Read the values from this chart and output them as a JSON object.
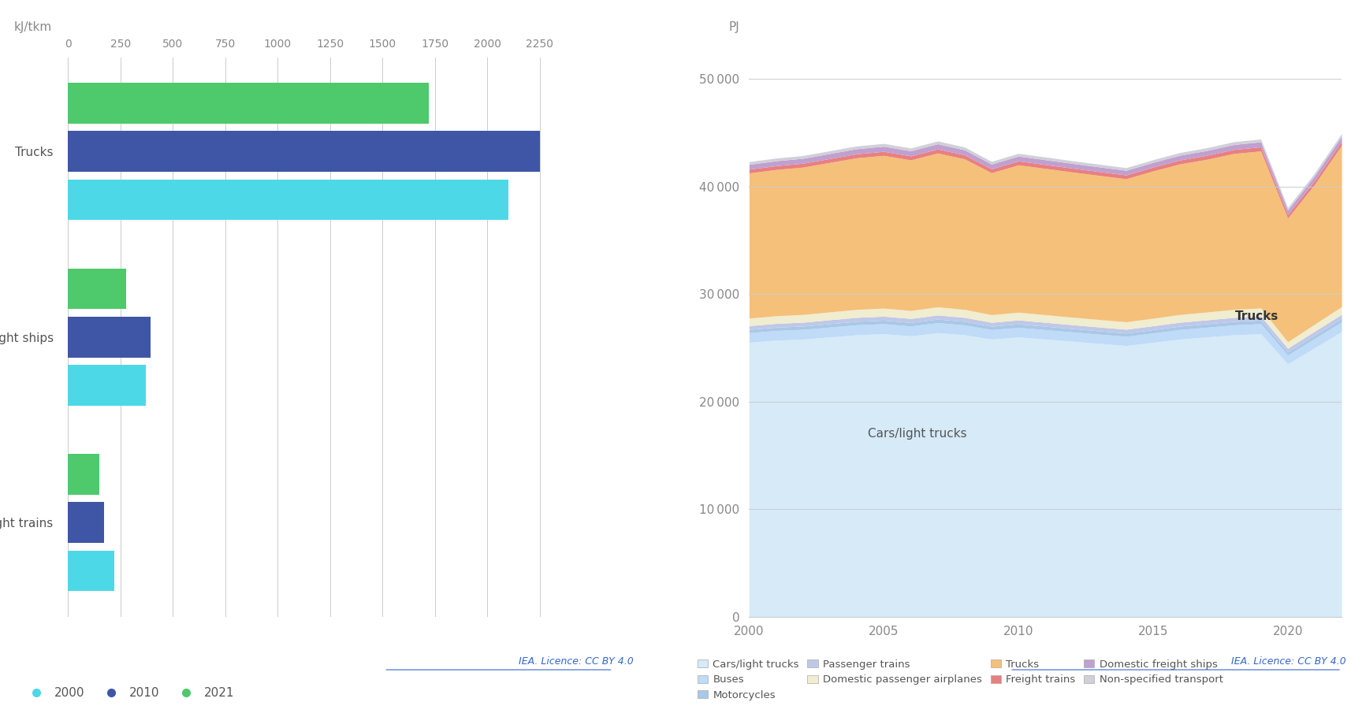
{
  "bar": {
    "categories": [
      "Freight trains",
      "Domestic freight ships",
      "Trucks"
    ],
    "years": [
      "2000",
      "2010",
      "2021"
    ],
    "colors": [
      "#4DD8E8",
      "#3F55A5",
      "#4EC96B"
    ],
    "values": {
      "Freight trains": [
        220,
        170,
        150
      ],
      "Domestic freight ships": [
        370,
        395,
        275
      ],
      "Trucks": [
        2100,
        2250,
        1720
      ]
    },
    "xlabel": "kJ/tkm",
    "xticks": [
      0,
      250,
      500,
      750,
      1000,
      1250,
      1500,
      1750,
      2000,
      2250
    ],
    "xlim": [
      0,
      2600
    ],
    "bar_height": 0.22,
    "bar_gap": 0.04
  },
  "area": {
    "xlabel": "PJ",
    "years": [
      2000,
      2001,
      2002,
      2003,
      2004,
      2005,
      2006,
      2007,
      2008,
      2009,
      2010,
      2011,
      2012,
      2013,
      2014,
      2015,
      2016,
      2017,
      2018,
      2019,
      2020,
      2021,
      2022
    ],
    "cars_light_trucks": [
      25500,
      25700,
      25800,
      26000,
      26200,
      26300,
      26100,
      26400,
      26200,
      25800,
      26000,
      25800,
      25600,
      25400,
      25200,
      25500,
      25800,
      26000,
      26200,
      26300,
      23500,
      25000,
      26500
    ],
    "buses": [
      900,
      900,
      900,
      920,
      930,
      930,
      920,
      930,
      920,
      880,
      890,
      880,
      870,
      860,
      860,
      870,
      890,
      900,
      920,
      930,
      820,
      860,
      900
    ],
    "motorcycles": [
      300,
      305,
      310,
      315,
      320,
      325,
      325,
      330,
      325,
      315,
      320,
      315,
      310,
      308,
      305,
      310,
      315,
      320,
      325,
      330,
      290,
      310,
      325
    ],
    "passenger_trains": [
      350,
      355,
      360,
      365,
      370,
      375,
      375,
      380,
      375,
      365,
      370,
      365,
      360,
      358,
      355,
      360,
      365,
      370,
      375,
      380,
      340,
      360,
      375
    ],
    "domestic_passenger_airplanes": [
      700,
      710,
      720,
      730,
      740,
      750,
      740,
      760,
      740,
      710,
      720,
      710,
      700,
      695,
      690,
      700,
      720,
      730,
      740,
      755,
      600,
      660,
      720
    ],
    "trucks": [
      13500,
      13600,
      13700,
      13900,
      14100,
      14200,
      14000,
      14300,
      14000,
      13200,
      13700,
      13600,
      13500,
      13400,
      13300,
      13700,
      14000,
      14200,
      14500,
      14600,
      11500,
      13000,
      15000
    ],
    "freight_trains": [
      350,
      355,
      360,
      365,
      370,
      375,
      375,
      380,
      375,
      365,
      370,
      365,
      360,
      358,
      355,
      360,
      365,
      370,
      375,
      380,
      340,
      360,
      375
    ],
    "domestic_freight_ships": [
      450,
      455,
      460,
      465,
      470,
      475,
      470,
      480,
      465,
      440,
      450,
      445,
      440,
      435,
      430,
      435,
      445,
      450,
      460,
      465,
      410,
      440,
      460
    ],
    "non_specified": [
      250,
      252,
      255,
      258,
      260,
      262,
      261,
      265,
      260,
      248,
      252,
      250,
      248,
      246,
      245,
      248,
      252,
      255,
      258,
      262,
      230,
      248,
      260
    ],
    "yticks": [
      0,
      10000,
      20000,
      30000,
      40000,
      50000
    ],
    "ylim": [
      0,
      52000
    ],
    "xlim_years": [
      2000,
      2022
    ],
    "xticks_years": [
      2000,
      2005,
      2010,
      2015,
      2020
    ],
    "colors": {
      "cars_light_trucks": "#D6EAF8",
      "buses": "#BFDBF7",
      "motorcycles": "#A8C8E8",
      "passenger_trains": "#C0C8E8",
      "domestic_passenger_airplanes": "#F0EDD0",
      "trucks": "#F5C07A",
      "freight_trains": "#E88080",
      "domestic_freight_ships": "#C0A0D0",
      "non_specified": "#D0D0D8"
    }
  },
  "legend_bar": {
    "items": [
      "2000",
      "2010",
      "2021"
    ],
    "colors": [
      "#4DD8E8",
      "#3F55A5",
      "#4EC96B"
    ]
  },
  "legend_area": {
    "items": [
      "Cars/light trucks",
      "Buses",
      "Motorcycles",
      "Passenger trains",
      "Domestic passenger airplanes",
      "Trucks",
      "Freight trains",
      "Domestic freight ships",
      "Non-specified transport"
    ],
    "colors": [
      "#D6EAF8",
      "#BFDBF7",
      "#A8C8E8",
      "#C0C8E8",
      "#F0EDD0",
      "#F5C07A",
      "#E88080",
      "#C0A0D0",
      "#D0D0D8"
    ]
  },
  "license_text": "IEA. Licence: CC BY 4.0",
  "background_color": "#FFFFFF"
}
